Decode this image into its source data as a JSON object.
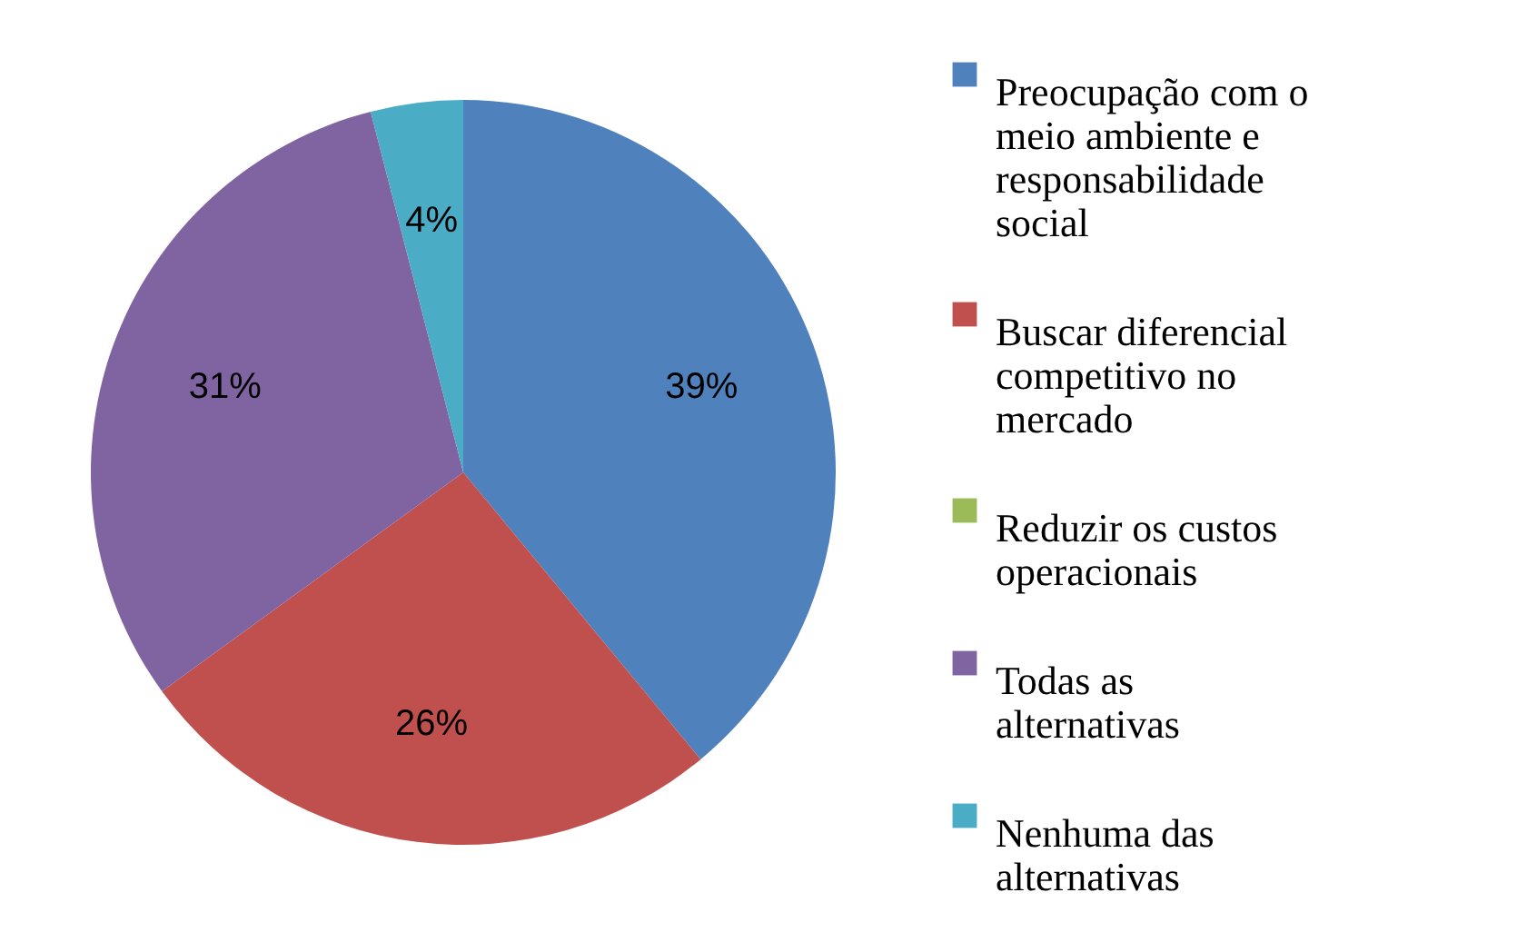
{
  "chart_data": {
    "type": "pie",
    "categories": [
      "Preocupação com o meio ambiente e responsabilidade social",
      "Buscar diferencial competitivo no mercado",
      "Reduzir os custos operacionais",
      "Todas as alternativas",
      "Nenhuma das alternativas"
    ],
    "values": [
      39,
      26,
      0,
      31,
      4
    ],
    "colors": [
      "#4f81bd",
      "#c0504d",
      "#9bbb59",
      "#8064a2",
      "#4bacc6"
    ],
    "value_labels": [
      "39%",
      "26%",
      null,
      "31%",
      "4%"
    ],
    "legend": "right"
  }
}
